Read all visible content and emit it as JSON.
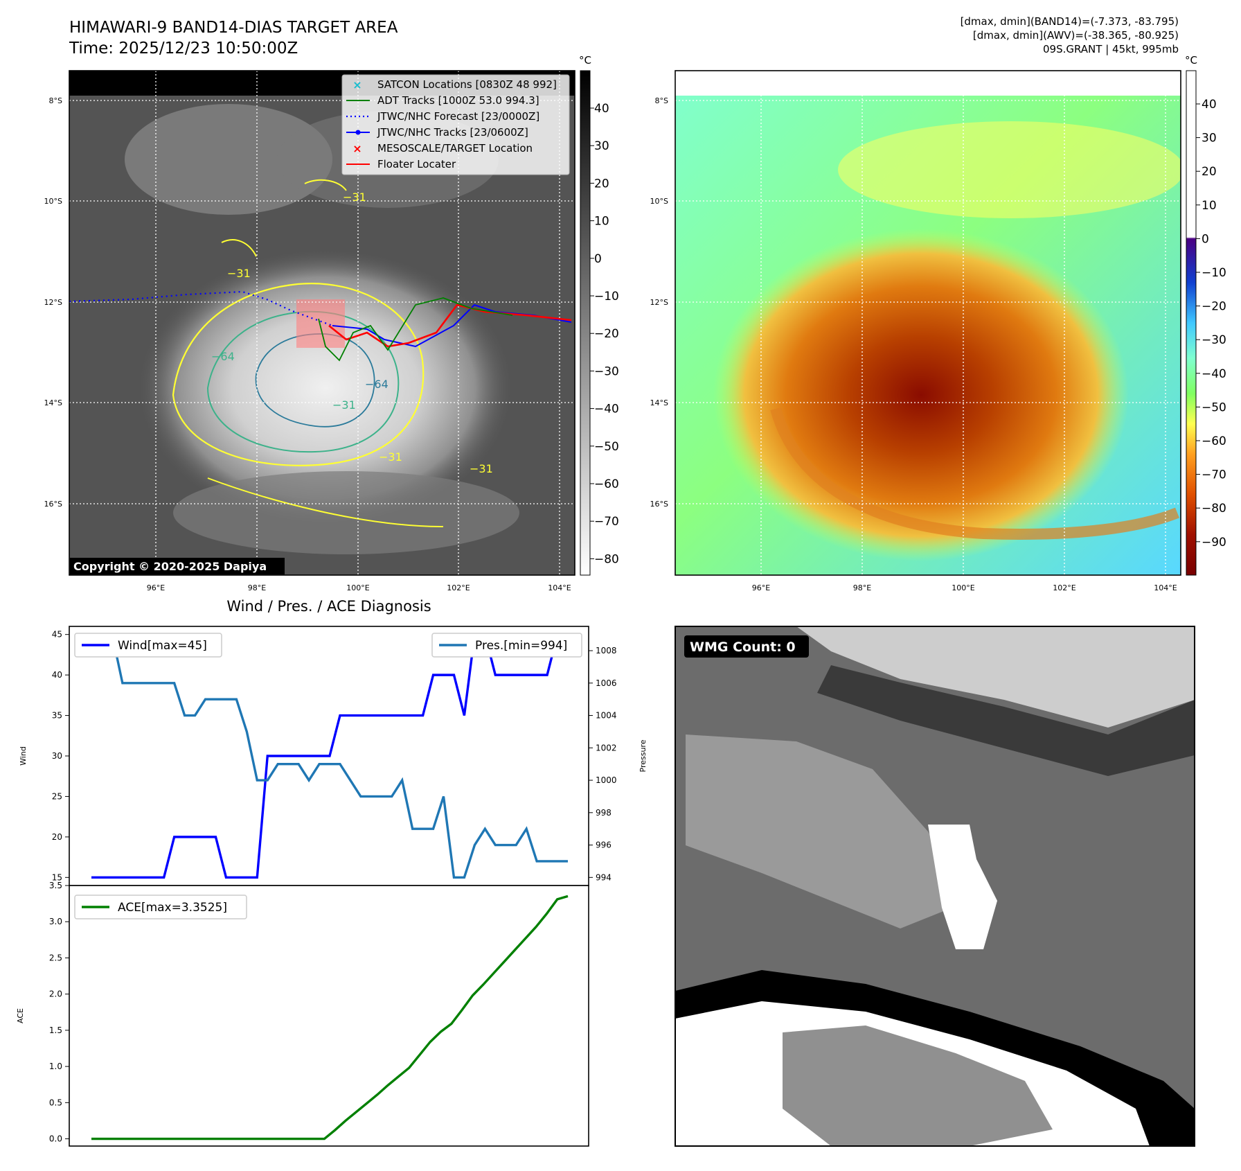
{
  "header": {
    "title_line1": "HIMAWARI-9 BAND14-DIAS TARGET AREA",
    "title_line2": "Time: 2025/12/23 10:50:00Z",
    "stats_line1": "[dmax, dmin](BAND14)=(-7.373, -83.795)",
    "stats_line2": "[dmax, dmin](AWV)=(-38.365, -80.925)",
    "stats_line3": "09S.GRANT | 45kt, 995mb"
  },
  "map_common": {
    "lat_labels": [
      "8°S",
      "10°S",
      "12°S",
      "14°S",
      "16°S"
    ],
    "lon_labels": [
      "96°E",
      "98°E",
      "100°E",
      "102°E",
      "104°E"
    ]
  },
  "ir_map": {
    "colorbar_unit": "°C",
    "colorbar_ticks": [
      "40",
      "30",
      "20",
      "10",
      "0",
      "−10",
      "−20",
      "−30",
      "−40",
      "−50",
      "−60",
      "−70",
      "−80"
    ],
    "contour_labels": [
      "−31",
      "−31",
      "−64",
      "−31",
      "−31",
      "−31",
      "−64"
    ],
    "copyright": "Copyright © 2020-2025 Dapiya",
    "legend": [
      {
        "label": "SATCON Locations [0830Z 48 992]",
        "color": "#17becf",
        "marker": "x"
      },
      {
        "label": "ADT Tracks [1000Z 53.0 994.3]",
        "color": "#008000",
        "marker": "line"
      },
      {
        "label": "JTWC/NHC Forecast [23/0000Z]",
        "color": "#0000ff",
        "marker": "dotted"
      },
      {
        "label": "JTWC/NHC Tracks [23/0600Z]",
        "color": "#0000ff",
        "marker": "line-dot"
      },
      {
        "label": "MESOSCALE/TARGET Location",
        "color": "#ff0000",
        "marker": "x"
      },
      {
        "label": "Floater Locater",
        "color": "#ff0000",
        "marker": "line"
      }
    ]
  },
  "wv_map": {
    "colorbar_unit": "°C",
    "colorbar_ticks": [
      "40",
      "30",
      "20",
      "10",
      "0",
      "−10",
      "−20",
      "−30",
      "−40",
      "−50",
      "−60",
      "−70",
      "−80",
      "−90"
    ]
  },
  "wmg_panel": {
    "badge": "WMG Count: 0"
  },
  "chart_data": [
    {
      "type": "line",
      "title": "Wind / Pres. / ACE Diagnosis",
      "ylabel": "Wind",
      "y2label": "Pressure",
      "ylim": [
        14,
        46
      ],
      "y2lim": [
        993.5,
        1009.5
      ],
      "yticks": [
        "15",
        "20",
        "25",
        "30",
        "35",
        "40",
        "45"
      ],
      "y2ticks": [
        "994",
        "996",
        "998",
        "1000",
        "1002",
        "1004",
        "1006",
        "1008"
      ],
      "series": [
        {
          "name": "Wind[max=45]",
          "color": "#0000ff",
          "axis": "left",
          "values": [
            15,
            15,
            15,
            15,
            15,
            15,
            15,
            15,
            20,
            20,
            20,
            20,
            20,
            15,
            15,
            15,
            15,
            30,
            30,
            30,
            30,
            30,
            30,
            30,
            35,
            35,
            35,
            35,
            35,
            35,
            35,
            35,
            35,
            40,
            40,
            40,
            35,
            45,
            45,
            40,
            40,
            40,
            40,
            40,
            40,
            45,
            45
          ]
        },
        {
          "name": "Pres.[min=994]",
          "color": "#1f77b4",
          "axis": "right",
          "values": [
            1009,
            1009,
            1009,
            1006,
            1006,
            1006,
            1006,
            1006,
            1006,
            1004,
            1004,
            1005,
            1005,
            1005,
            1005,
            1003,
            1000,
            1000,
            1001,
            1001,
            1001,
            1000,
            1001,
            1001,
            1001,
            1000,
            999,
            999,
            999,
            999,
            1000,
            997,
            997,
            997,
            999,
            994,
            994,
            996,
            997,
            996,
            996,
            996,
            997,
            995,
            995,
            995,
            995
          ]
        }
      ]
    },
    {
      "type": "line",
      "ylabel": "ACE",
      "ylim": [
        -0.1,
        3.5
      ],
      "yticks": [
        "0.0",
        "0.5",
        "1.0",
        "1.5",
        "2.0",
        "2.5",
        "3.0",
        "3.5"
      ],
      "series": [
        {
          "name": "ACE[max=3.3525]",
          "color": "#008000",
          "values": [
            0,
            0,
            0,
            0,
            0,
            0,
            0,
            0,
            0,
            0,
            0,
            0,
            0,
            0,
            0,
            0,
            0,
            0,
            0,
            0,
            0,
            0,
            0,
            0.12,
            0.25,
            0.37,
            0.49,
            0.61,
            0.74,
            0.86,
            0.98,
            1.16,
            1.34,
            1.48,
            1.59,
            1.78,
            1.98,
            2.13,
            2.29,
            2.45,
            2.61,
            2.77,
            2.93,
            3.11,
            3.31,
            3.3525
          ]
        }
      ]
    }
  ]
}
